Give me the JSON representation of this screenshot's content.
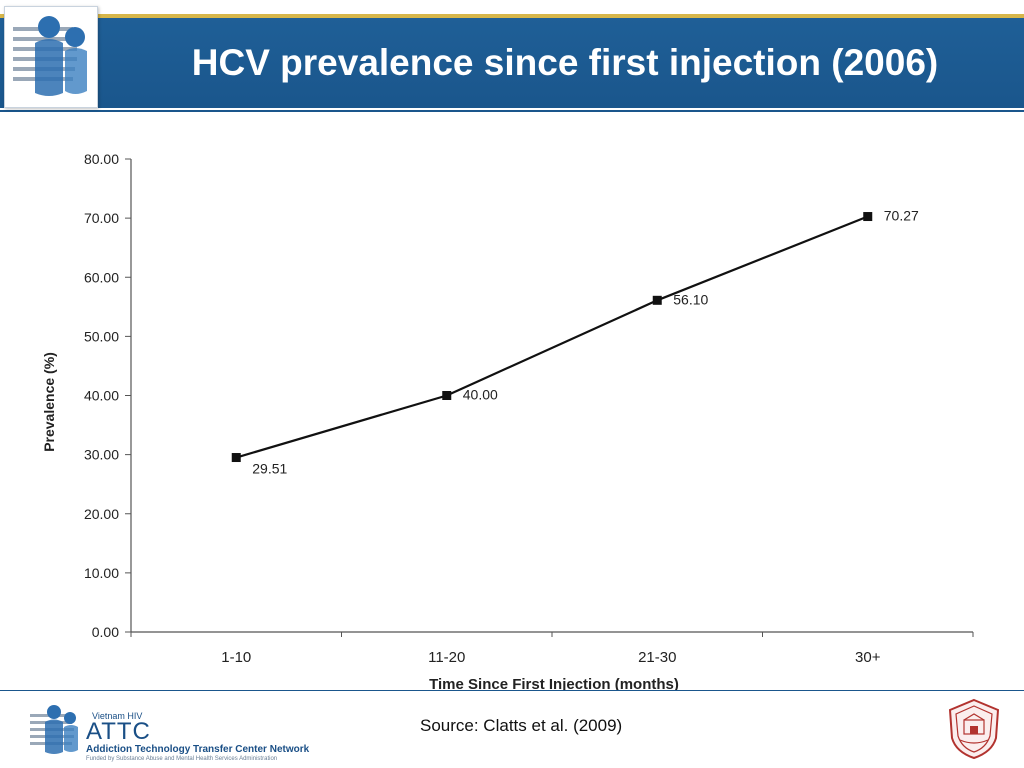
{
  "slide": {
    "title": "HCV prevalence since first injection (2006)",
    "source": "Source: Clatts et al. (2009)"
  },
  "attc": {
    "top_label": "Vietnam HIV",
    "name": "ATTC",
    "network": "Addiction Technology Transfer Center Network",
    "funded": "Funded by Substance Abuse and Mental Health Services Administration"
  },
  "colors": {
    "header_blue": "#1a568c",
    "header_gold": "#d7b64a",
    "line": "#111111"
  },
  "icons": [
    "people-logo-icon",
    "attc-logo-icon",
    "university-seal-icon"
  ],
  "chart_data": {
    "type": "line",
    "title": "",
    "xlabel": "Time Since First Injection (months)",
    "ylabel": "Prevalence (%)",
    "categories": [
      "1-10",
      "11-20",
      "21-30",
      "30+"
    ],
    "values": [
      29.51,
      40.0,
      56.1,
      70.27
    ],
    "data_labels": [
      "29.51",
      "40.00",
      "56.10",
      "70.27"
    ],
    "ylim": [
      0,
      80
    ],
    "yticks": [
      "0.00",
      "10.00",
      "20.00",
      "30.00",
      "40.00",
      "50.00",
      "60.00",
      "70.00",
      "80.00"
    ],
    "grid": false,
    "legend": "none"
  }
}
